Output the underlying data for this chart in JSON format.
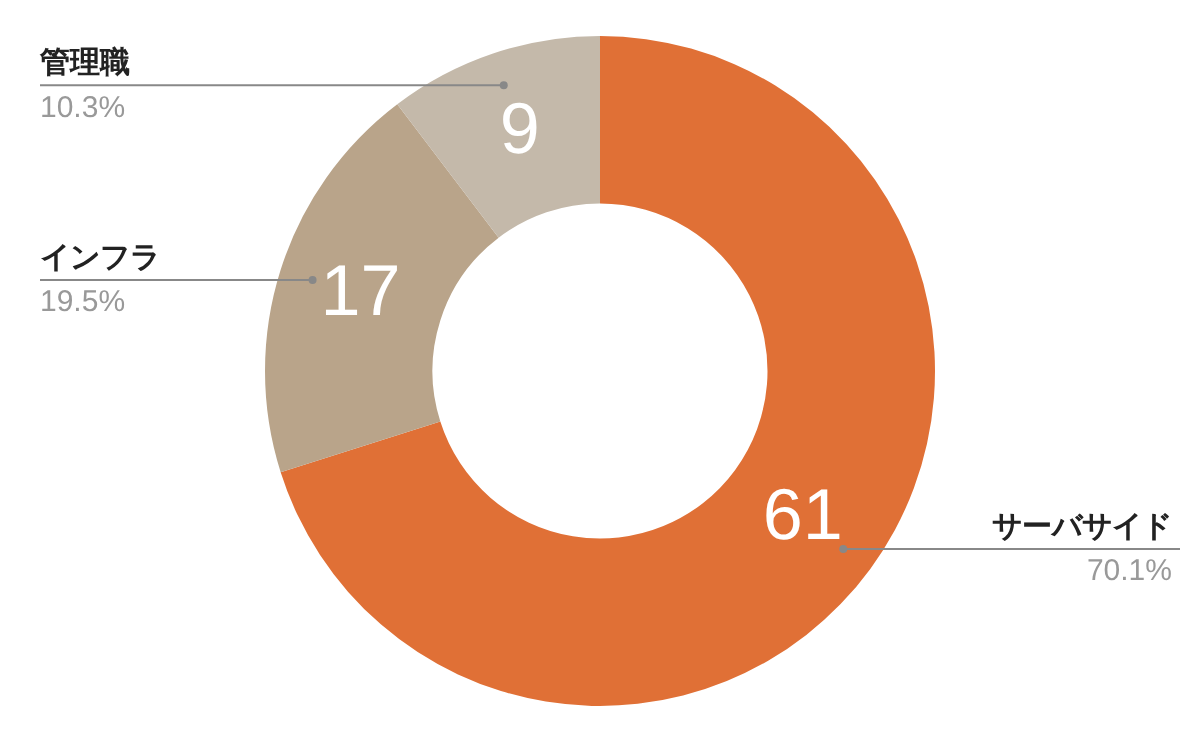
{
  "chart_data": {
    "type": "donut",
    "categories": [
      "サーバサイド",
      "インフラ",
      "管理職"
    ],
    "values": [
      61,
      17,
      9
    ],
    "colors": [
      "#e07036",
      "#b9a48a",
      "#c4b9aa"
    ],
    "data_labels": true,
    "legend": false,
    "annotations": [
      {
        "text": "70.1%",
        "x": "サーバサイド"
      },
      {
        "text": "19.5%",
        "x": "インフラ"
      },
      {
        "text": "10.3%",
        "x": "管理職"
      }
    ]
  }
}
